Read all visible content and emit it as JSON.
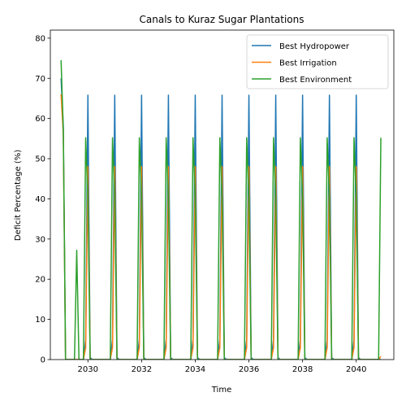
{
  "chart_data": {
    "type": "line",
    "title": "Canals to Kuraz Sugar Plantations",
    "xlabel": "Time",
    "ylabel": "Deficit Percentage (%)",
    "xlim": [
      2028.6,
      2041.4
    ],
    "ylim": [
      0,
      82
    ],
    "xticks": [
      2030,
      2032,
      2034,
      2036,
      2038,
      2040
    ],
    "yticks": [
      0,
      10,
      20,
      30,
      40,
      50,
      60,
      70,
      80
    ],
    "grid": false,
    "legend_position": "top-right",
    "start_values": {
      "Best Hydropower": 70,
      "Best Irrigation": 66,
      "Best Environment": 74.5
    },
    "annual_peaks": {
      "Best Hydropower": 65.8,
      "Best Irrigation": 48,
      "Best Environment": 55.2
    },
    "environment_secondary_peak": {
      "x": 2029.58,
      "y": 27.2
    },
    "end_values": {
      "Best Hydropower": 0,
      "Best Irrigation": 0.8,
      "Best Environment": 55.2
    },
    "series": [
      {
        "name": "Best Hydropower",
        "color": "#1f77b4"
      },
      {
        "name": "Best Irrigation",
        "color": "#ff7f0e"
      },
      {
        "name": "Best Environment",
        "color": "#2ca02c"
      }
    ]
  }
}
